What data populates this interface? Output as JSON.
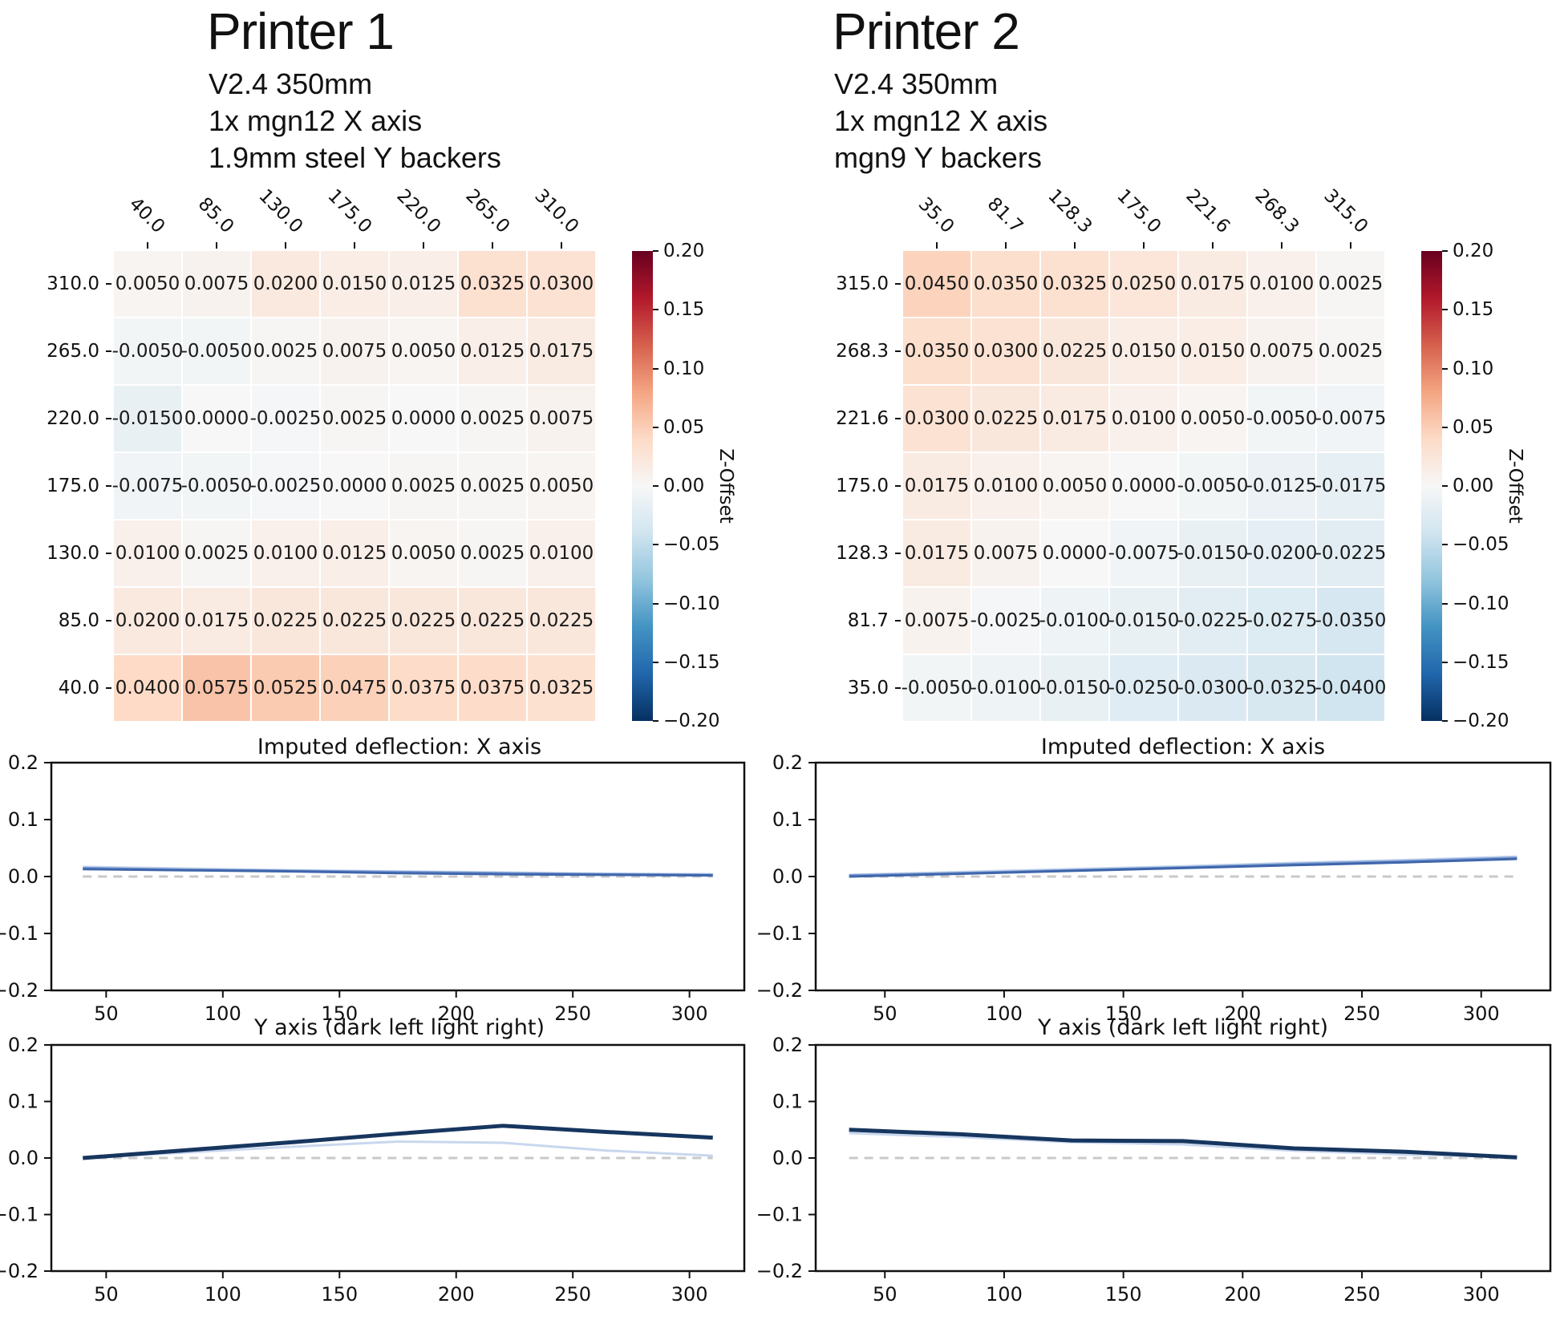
{
  "colorbar": {
    "label": "Z-Offset",
    "ticks": [
      "0.20",
      "0.15",
      "0.10",
      "0.05",
      "0.00",
      "−0.05",
      "−0.10",
      "−0.15",
      "−0.20"
    ],
    "gradient_colors_top_to_bottom": [
      "#67001f",
      "#b2182b",
      "#d6604d",
      "#f4a582",
      "#fddbc7",
      "#f7f7f7",
      "#d1e5f0",
      "#92c5de",
      "#4393c3",
      "#2166ac",
      "#053061"
    ]
  },
  "chart_data": [
    {
      "type": "heatmap",
      "title": "Printer 1",
      "subtitle_lines": [
        "V2.4 350mm",
        "1x mgn12 X axis",
        "1.9mm steel Y backers"
      ],
      "x_labels": [
        "40.0",
        "85.0",
        "130.0",
        "175.0",
        "220.0",
        "265.0",
        "310.0"
      ],
      "y_labels_top_to_bottom": [
        "310.0",
        "265.0",
        "220.0",
        "175.0",
        "130.0",
        "85.0",
        "40.0"
      ],
      "values_rows_top_to_bottom": [
        [
          0.005,
          0.0075,
          0.02,
          0.015,
          0.0125,
          0.0325,
          0.03
        ],
        [
          -0.005,
          -0.005,
          0.0025,
          0.0075,
          0.005,
          0.0125,
          0.0175
        ],
        [
          -0.015,
          0.0,
          -0.0025,
          0.0025,
          0.0,
          0.0025,
          0.0075
        ],
        [
          -0.0075,
          -0.005,
          -0.0025,
          0.0,
          0.0025,
          0.0025,
          0.005
        ],
        [
          0.01,
          0.0025,
          0.01,
          0.0125,
          0.005,
          0.0025,
          0.01
        ],
        [
          0.02,
          0.0175,
          0.0225,
          0.0225,
          0.0225,
          0.0225,
          0.0225
        ],
        [
          0.04,
          0.0575,
          0.0525,
          0.0475,
          0.0375,
          0.0375,
          0.0325
        ]
      ],
      "vmin": -0.2,
      "vmax": 0.2,
      "colormap": "RdBu_r",
      "colorbar_label": "Z-Offset"
    },
    {
      "type": "heatmap",
      "title": "Printer 2",
      "subtitle_lines": [
        "V2.4 350mm",
        "1x mgn12 X axis",
        "mgn9 Y backers"
      ],
      "x_labels": [
        "35.0",
        "81.7",
        "128.3",
        "175.0",
        "221.6",
        "268.3",
        "315.0"
      ],
      "y_labels_top_to_bottom": [
        "315.0",
        "268.3",
        "221.6",
        "175.0",
        "128.3",
        "81.7",
        "35.0"
      ],
      "values_rows_top_to_bottom": [
        [
          0.045,
          0.035,
          0.0325,
          0.025,
          0.0175,
          0.01,
          0.0025
        ],
        [
          0.035,
          0.03,
          0.0225,
          0.015,
          0.015,
          0.0075,
          0.0025
        ],
        [
          0.03,
          0.0225,
          0.0175,
          0.01,
          0.005,
          -0.005,
          -0.0075
        ],
        [
          0.0175,
          0.01,
          0.005,
          0.0,
          -0.005,
          -0.0125,
          -0.0175
        ],
        [
          0.0175,
          0.0075,
          0.0,
          -0.0075,
          -0.015,
          -0.02,
          -0.0225
        ],
        [
          0.0075,
          -0.0025,
          -0.01,
          -0.015,
          -0.0225,
          -0.0275,
          -0.035
        ],
        [
          -0.005,
          -0.01,
          -0.015,
          -0.025,
          -0.03,
          -0.0325,
          -0.04
        ]
      ],
      "vmin": -0.2,
      "vmax": 0.2,
      "colormap": "RdBu_r",
      "colorbar_label": "Z-Offset"
    },
    {
      "type": "line",
      "title": "Imputed deflection: X axis",
      "panel": "Printer 1",
      "xlim": [
        26.5,
        323.5
      ],
      "ylim": [
        -0.2,
        0.2
      ],
      "xticks": [
        50,
        100,
        150,
        200,
        250,
        300
      ],
      "xtick_labels": [
        "50",
        "100",
        "150",
        "200",
        "250",
        "300"
      ],
      "yticks": [
        0.2,
        0.1,
        0,
        -0.1,
        -0.2
      ],
      "ytick_labels": [
        "0.2",
        "0.1",
        "0.0",
        "−0.1",
        "−0.2"
      ],
      "zero_line": {
        "color": "#c9c9c9",
        "style": "dashed"
      },
      "series": [
        {
          "name": "light",
          "color": "#c3d3ec",
          "width": 3,
          "x": [
            40,
            85,
            130,
            175,
            220,
            265,
            310
          ],
          "y": [
            0.017,
            0.014,
            0.011,
            0.009,
            0.007,
            0.005,
            0.004
          ]
        },
        {
          "name": "medium",
          "color": "#7b9bd3",
          "width": 3,
          "x": [
            40,
            85,
            130,
            175,
            220,
            265,
            310
          ],
          "y": [
            0.015,
            0.012,
            0.01,
            0.008,
            0.006,
            0.004,
            0.003
          ]
        },
        {
          "name": "dark",
          "color": "#3f66ab",
          "width": 3,
          "x": [
            40,
            85,
            130,
            175,
            220,
            265,
            310
          ],
          "y": [
            0.013,
            0.011,
            0.009,
            0.006,
            0.004,
            0.003,
            0.002
          ]
        }
      ]
    },
    {
      "type": "line",
      "title": "Y axis (dark left light right)",
      "panel": "Printer 1",
      "xlim": [
        26.5,
        323.5
      ],
      "ylim": [
        -0.2,
        0.2
      ],
      "xticks": [
        50,
        100,
        150,
        200,
        250,
        300
      ],
      "xtick_labels": [
        "50",
        "100",
        "150",
        "200",
        "250",
        "300"
      ],
      "yticks": [
        0.2,
        0.1,
        0,
        -0.1,
        -0.2
      ],
      "ytick_labels": [
        "0.2",
        "0.1",
        "0.0",
        "−0.1",
        "−0.2"
      ],
      "zero_line": {
        "color": "#c9c9c9",
        "style": "dashed"
      },
      "series": [
        {
          "name": "light",
          "color": "#c9d7ee",
          "width": 3,
          "x": [
            40,
            85,
            130,
            175,
            220,
            265,
            310
          ],
          "y": [
            0.0,
            0.01,
            0.02,
            0.029,
            0.027,
            0.013,
            0.004
          ]
        },
        {
          "name": "dark",
          "color": "#17365f",
          "width": 5,
          "x": [
            40,
            85,
            130,
            175,
            220,
            265,
            310
          ],
          "y": [
            0.0,
            0.014,
            0.028,
            0.043,
            0.057,
            0.046,
            0.036
          ]
        }
      ]
    },
    {
      "type": "line",
      "title": "Imputed deflection: X axis",
      "panel": "Printer 2",
      "xlim": [
        21,
        329
      ],
      "ylim": [
        -0.2,
        0.2
      ],
      "xticks": [
        50,
        100,
        150,
        200,
        250,
        300
      ],
      "xtick_labels": [
        "50",
        "100",
        "150",
        "200",
        "250",
        "300"
      ],
      "yticks": [
        0.2,
        0.1,
        0,
        -0.1,
        -0.2
      ],
      "ytick_labels": [
        "0.2",
        "0.1",
        "0.0",
        "−0.1",
        "−0.2"
      ],
      "zero_line": {
        "color": "#c9c9c9",
        "style": "dashed"
      },
      "series": [
        {
          "name": "light",
          "color": "#c3d3ec",
          "width": 3,
          "x": [
            35,
            81.7,
            128.3,
            175,
            221.6,
            268.3,
            315
          ],
          "y": [
            0.003,
            0.008,
            0.013,
            0.018,
            0.024,
            0.029,
            0.035
          ]
        },
        {
          "name": "medium",
          "color": "#7b9bd3",
          "width": 3,
          "x": [
            35,
            81.7,
            128.3,
            175,
            221.6,
            268.3,
            315
          ],
          "y": [
            0.002,
            0.006,
            0.011,
            0.016,
            0.022,
            0.027,
            0.033
          ]
        },
        {
          "name": "dark",
          "color": "#3f66ab",
          "width": 3,
          "x": [
            35,
            81.7,
            128.3,
            175,
            221.6,
            268.3,
            315
          ],
          "y": [
            0.0,
            0.005,
            0.01,
            0.015,
            0.02,
            0.025,
            0.031
          ]
        }
      ]
    },
    {
      "type": "line",
      "title": "Y axis (dark left light right)",
      "panel": "Printer 2",
      "xlim": [
        21,
        329
      ],
      "ylim": [
        -0.2,
        0.2
      ],
      "xticks": [
        50,
        100,
        150,
        200,
        250,
        300
      ],
      "xtick_labels": [
        "50",
        "100",
        "150",
        "200",
        "250",
        "300"
      ],
      "yticks": [
        0.2,
        0.1,
        0,
        -0.1,
        -0.2
      ],
      "ytick_labels": [
        "0.2",
        "0.1",
        "0.0",
        "−0.1",
        "−0.2"
      ],
      "zero_line": {
        "color": "#c9c9c9",
        "style": "dashed"
      },
      "series": [
        {
          "name": "light",
          "color": "#c9d7ee",
          "width": 3,
          "x": [
            35,
            81.7,
            128.3,
            175,
            221.6,
            268.3,
            315
          ],
          "y": [
            0.044,
            0.037,
            0.028,
            0.024,
            0.013,
            0.006,
            0.002
          ]
        },
        {
          "name": "dark",
          "color": "#17365f",
          "width": 5,
          "x": [
            35,
            81.7,
            128.3,
            175,
            221.6,
            268.3,
            315
          ],
          "y": [
            0.05,
            0.042,
            0.031,
            0.03,
            0.017,
            0.011,
            0.001
          ]
        }
      ]
    }
  ]
}
